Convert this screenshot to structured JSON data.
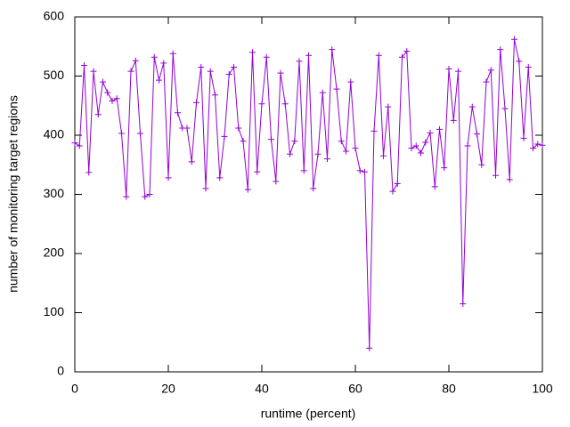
{
  "chart_data": {
    "type": "line",
    "xlabel": "runtime (percent)",
    "ylabel": "number of monitoring target regions",
    "x": [
      0,
      1,
      2,
      3,
      4,
      5,
      6,
      7,
      8,
      9,
      10,
      11,
      12,
      13,
      14,
      15,
      16,
      17,
      18,
      19,
      20,
      21,
      22,
      23,
      24,
      25,
      26,
      27,
      28,
      29,
      30,
      31,
      32,
      33,
      34,
      35,
      36,
      37,
      38,
      39,
      40,
      41,
      42,
      43,
      44,
      45,
      46,
      47,
      48,
      49,
      50,
      51,
      52,
      53,
      54,
      55,
      56,
      57,
      58,
      59,
      60,
      61,
      62,
      63,
      64,
      65,
      66,
      67,
      68,
      69,
      70,
      71,
      72,
      73,
      74,
      75,
      76,
      77,
      78,
      79,
      80,
      81,
      82,
      83,
      84,
      85,
      86,
      87,
      88,
      89,
      90,
      91,
      92,
      93,
      94,
      95,
      96,
      97,
      98,
      99,
      100
    ],
    "values": [
      387,
      382,
      518,
      337,
      508,
      435,
      490,
      472,
      458,
      462,
      403,
      296,
      508,
      526,
      403,
      296,
      300,
      532,
      493,
      522,
      328,
      538,
      438,
      412,
      412,
      355,
      455,
      515,
      310,
      508,
      468,
      328,
      398,
      503,
      515,
      412,
      390,
      308,
      540,
      338,
      453,
      532,
      393,
      322,
      505,
      453,
      368,
      390,
      525,
      340,
      535,
      310,
      368,
      472,
      360,
      545,
      478,
      390,
      373,
      490,
      378,
      340,
      338,
      40,
      407,
      535,
      365,
      448,
      305,
      318,
      532,
      542,
      378,
      382,
      370,
      388,
      404,
      313,
      410,
      345,
      512,
      425,
      508,
      115,
      382,
      448,
      402,
      350,
      490,
      510,
      332,
      545,
      445,
      325,
      562,
      525,
      395,
      515,
      378,
      385,
      383
    ],
    "color": "#9400d3",
    "xlim": [
      0,
      100
    ],
    "xticks": [
      0,
      20,
      40,
      60,
      80,
      100
    ],
    "ylim": [
      0,
      600
    ],
    "yticks": [
      0,
      100,
      200,
      300,
      400,
      500,
      600
    ],
    "grid": false
  }
}
